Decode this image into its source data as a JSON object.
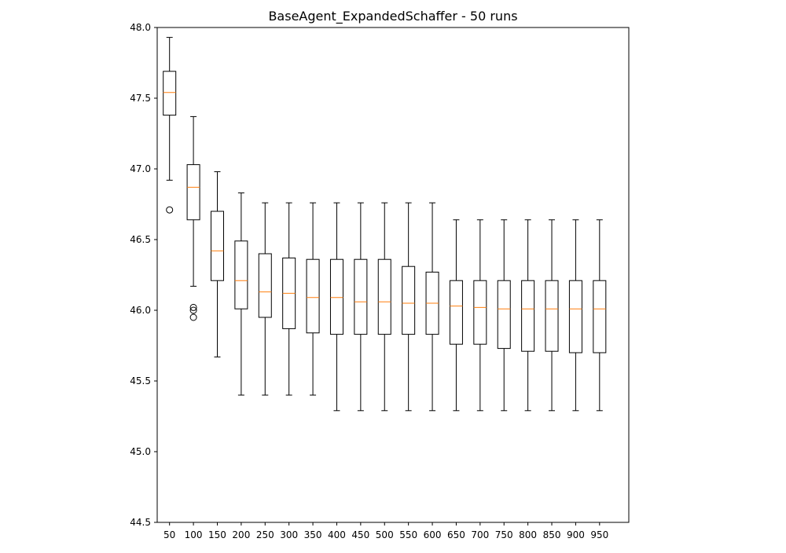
{
  "chart_data": {
    "type": "box",
    "title": "BaseAgent_ExpandedSchaffer - 50 runs",
    "xlabel": "",
    "ylabel": "",
    "ylim": [
      44.5,
      48.0
    ],
    "yticks": [
      44.5,
      45.0,
      45.5,
      46.0,
      46.5,
      47.0,
      47.5,
      48.0
    ],
    "ytick_labels": [
      "44.5",
      "45.0",
      "45.5",
      "46.0",
      "46.5",
      "47.0",
      "47.5",
      "48.0"
    ],
    "grid": false,
    "colors": {
      "box": "#000000",
      "median": "#ff7f0e",
      "frame": "#000000",
      "background": "#ffffff"
    },
    "categories": [
      "50",
      "100",
      "150",
      "200",
      "250",
      "300",
      "350",
      "400",
      "450",
      "500",
      "550",
      "600",
      "650",
      "700",
      "750",
      "800",
      "850",
      "900",
      "950"
    ],
    "boxes": [
      {
        "whisker_low": 46.92,
        "q1": 47.38,
        "median": 47.54,
        "q3": 47.69,
        "whisker_high": 47.93,
        "outliers": [
          46.71
        ]
      },
      {
        "whisker_low": 46.17,
        "q1": 46.64,
        "median": 46.87,
        "q3": 47.03,
        "whisker_high": 47.37,
        "outliers": [
          46.02,
          46.0,
          45.95
        ]
      },
      {
        "whisker_low": 45.67,
        "q1": 46.21,
        "median": 46.42,
        "q3": 46.7,
        "whisker_high": 46.98,
        "outliers": []
      },
      {
        "whisker_low": 45.4,
        "q1": 46.01,
        "median": 46.21,
        "q3": 46.49,
        "whisker_high": 46.83,
        "outliers": []
      },
      {
        "whisker_low": 45.4,
        "q1": 45.95,
        "median": 46.13,
        "q3": 46.4,
        "whisker_high": 46.76,
        "outliers": []
      },
      {
        "whisker_low": 45.4,
        "q1": 45.87,
        "median": 46.12,
        "q3": 46.37,
        "whisker_high": 46.76,
        "outliers": []
      },
      {
        "whisker_low": 45.4,
        "q1": 45.84,
        "median": 46.09,
        "q3": 46.36,
        "whisker_high": 46.76,
        "outliers": []
      },
      {
        "whisker_low": 45.29,
        "q1": 45.83,
        "median": 46.09,
        "q3": 46.36,
        "whisker_high": 46.76,
        "outliers": []
      },
      {
        "whisker_low": 45.29,
        "q1": 45.83,
        "median": 46.06,
        "q3": 46.36,
        "whisker_high": 46.76,
        "outliers": []
      },
      {
        "whisker_low": 45.29,
        "q1": 45.83,
        "median": 46.06,
        "q3": 46.36,
        "whisker_high": 46.76,
        "outliers": []
      },
      {
        "whisker_low": 45.29,
        "q1": 45.83,
        "median": 46.05,
        "q3": 46.31,
        "whisker_high": 46.76,
        "outliers": []
      },
      {
        "whisker_low": 45.29,
        "q1": 45.83,
        "median": 46.05,
        "q3": 46.27,
        "whisker_high": 46.76,
        "outliers": []
      },
      {
        "whisker_low": 45.29,
        "q1": 45.76,
        "median": 46.03,
        "q3": 46.21,
        "whisker_high": 46.64,
        "outliers": []
      },
      {
        "whisker_low": 45.29,
        "q1": 45.76,
        "median": 46.02,
        "q3": 46.21,
        "whisker_high": 46.64,
        "outliers": []
      },
      {
        "whisker_low": 45.29,
        "q1": 45.73,
        "median": 46.01,
        "q3": 46.21,
        "whisker_high": 46.64,
        "outliers": []
      },
      {
        "whisker_low": 45.29,
        "q1": 45.71,
        "median": 46.01,
        "q3": 46.21,
        "whisker_high": 46.64,
        "outliers": []
      },
      {
        "whisker_low": 45.29,
        "q1": 45.71,
        "median": 46.01,
        "q3": 46.21,
        "whisker_high": 46.64,
        "outliers": []
      },
      {
        "whisker_low": 45.29,
        "q1": 45.7,
        "median": 46.01,
        "q3": 46.21,
        "whisker_high": 46.64,
        "outliers": []
      },
      {
        "whisker_low": 45.29,
        "q1": 45.7,
        "median": 46.01,
        "q3": 46.21,
        "whisker_high": 46.64,
        "outliers": []
      }
    ]
  }
}
